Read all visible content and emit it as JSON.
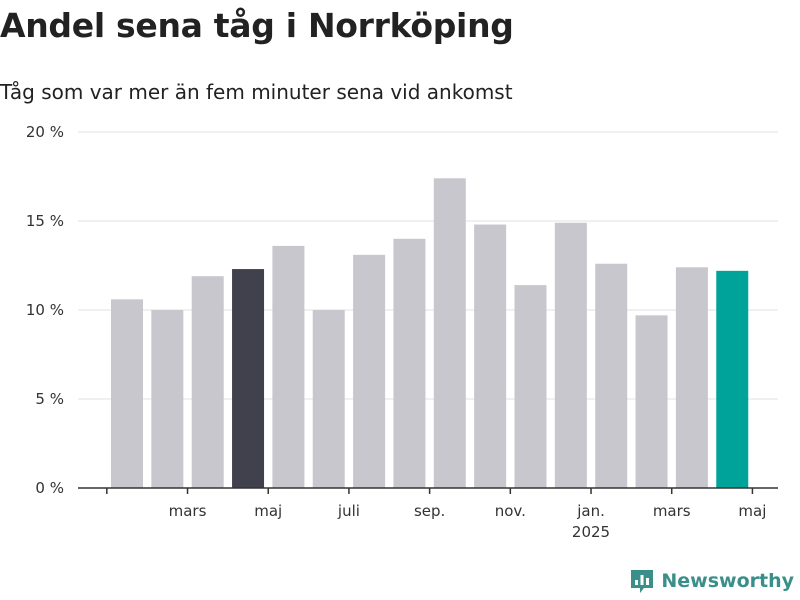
{
  "chart_data": {
    "type": "bar",
    "title": "Andel sena tåg i Norrköping",
    "subtitle": "Tåg som var mer än fem minuter sena vid ankomst",
    "values": [
      10.6,
      10.0,
      11.9,
      12.3,
      13.6,
      10.0,
      13.1,
      14.0,
      17.4,
      14.8,
      11.4,
      14.9,
      12.6,
      9.7,
      12.4,
      12.2
    ],
    "x_tick_labels": [
      {
        "bar": 1.5,
        "label": "mars",
        "sublabel": ""
      },
      {
        "bar": 3.5,
        "label": "maj",
        "sublabel": ""
      },
      {
        "bar": 5.5,
        "label": "juli",
        "sublabel": ""
      },
      {
        "bar": 7.5,
        "label": "sep.",
        "sublabel": ""
      },
      {
        "bar": 9.5,
        "label": "nov.",
        "sublabel": ""
      },
      {
        "bar": 11.5,
        "label": "jan.",
        "sublabel": "2025"
      },
      {
        "bar": 13.5,
        "label": "mars",
        "sublabel": ""
      },
      {
        "bar": 15.5,
        "label": "maj",
        "sublabel": ""
      }
    ],
    "y_ticks": [
      {
        "value": 0,
        "label": "0 %"
      },
      {
        "value": 5,
        "label": "5 %"
      },
      {
        "value": 10,
        "label": "10 %"
      },
      {
        "value": 15,
        "label": "15 %"
      },
      {
        "value": 20,
        "label": "20 %"
      }
    ],
    "ylim": [
      0,
      20
    ],
    "grid": true,
    "highlights": [
      {
        "index": 3,
        "color": "#41414d"
      },
      {
        "index": 15,
        "color": "#00a39a"
      }
    ],
    "default_bar_color": "#c8c7ce"
  },
  "brand": {
    "name": "Newsworthy",
    "logo_icon": "newsworthy-chart-logo-icon",
    "color": "#3a8f8a"
  }
}
